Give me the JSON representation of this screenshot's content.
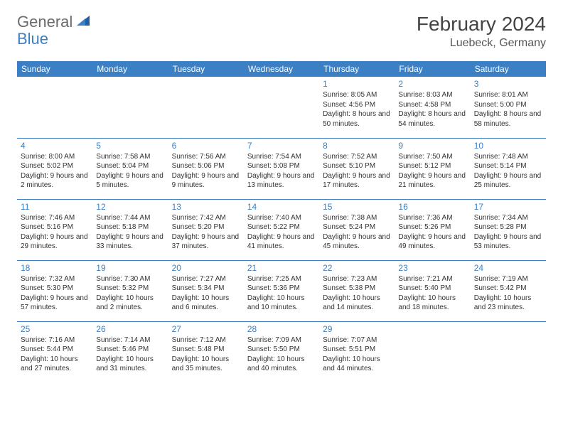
{
  "logo": {
    "general": "General",
    "blue": "Blue"
  },
  "header": {
    "title": "February 2024",
    "location": "Luebeck, Germany"
  },
  "colors": {
    "header_bg": "#3b7fc4",
    "header_text": "#ffffff",
    "day_number": "#3b7fc4",
    "body_text": "#333333",
    "title_text": "#444444"
  },
  "weekdays": [
    "Sunday",
    "Monday",
    "Tuesday",
    "Wednesday",
    "Thursday",
    "Friday",
    "Saturday"
  ],
  "weeks": [
    [
      null,
      null,
      null,
      null,
      {
        "n": "1",
        "sunrise": "Sunrise: 8:05 AM",
        "sunset": "Sunset: 4:56 PM",
        "daylight": "Daylight: 8 hours and 50 minutes."
      },
      {
        "n": "2",
        "sunrise": "Sunrise: 8:03 AM",
        "sunset": "Sunset: 4:58 PM",
        "daylight": "Daylight: 8 hours and 54 minutes."
      },
      {
        "n": "3",
        "sunrise": "Sunrise: 8:01 AM",
        "sunset": "Sunset: 5:00 PM",
        "daylight": "Daylight: 8 hours and 58 minutes."
      }
    ],
    [
      {
        "n": "4",
        "sunrise": "Sunrise: 8:00 AM",
        "sunset": "Sunset: 5:02 PM",
        "daylight": "Daylight: 9 hours and 2 minutes."
      },
      {
        "n": "5",
        "sunrise": "Sunrise: 7:58 AM",
        "sunset": "Sunset: 5:04 PM",
        "daylight": "Daylight: 9 hours and 5 minutes."
      },
      {
        "n": "6",
        "sunrise": "Sunrise: 7:56 AM",
        "sunset": "Sunset: 5:06 PM",
        "daylight": "Daylight: 9 hours and 9 minutes."
      },
      {
        "n": "7",
        "sunrise": "Sunrise: 7:54 AM",
        "sunset": "Sunset: 5:08 PM",
        "daylight": "Daylight: 9 hours and 13 minutes."
      },
      {
        "n": "8",
        "sunrise": "Sunrise: 7:52 AM",
        "sunset": "Sunset: 5:10 PM",
        "daylight": "Daylight: 9 hours and 17 minutes."
      },
      {
        "n": "9",
        "sunrise": "Sunrise: 7:50 AM",
        "sunset": "Sunset: 5:12 PM",
        "daylight": "Daylight: 9 hours and 21 minutes."
      },
      {
        "n": "10",
        "sunrise": "Sunrise: 7:48 AM",
        "sunset": "Sunset: 5:14 PM",
        "daylight": "Daylight: 9 hours and 25 minutes."
      }
    ],
    [
      {
        "n": "11",
        "sunrise": "Sunrise: 7:46 AM",
        "sunset": "Sunset: 5:16 PM",
        "daylight": "Daylight: 9 hours and 29 minutes."
      },
      {
        "n": "12",
        "sunrise": "Sunrise: 7:44 AM",
        "sunset": "Sunset: 5:18 PM",
        "daylight": "Daylight: 9 hours and 33 minutes."
      },
      {
        "n": "13",
        "sunrise": "Sunrise: 7:42 AM",
        "sunset": "Sunset: 5:20 PM",
        "daylight": "Daylight: 9 hours and 37 minutes."
      },
      {
        "n": "14",
        "sunrise": "Sunrise: 7:40 AM",
        "sunset": "Sunset: 5:22 PM",
        "daylight": "Daylight: 9 hours and 41 minutes."
      },
      {
        "n": "15",
        "sunrise": "Sunrise: 7:38 AM",
        "sunset": "Sunset: 5:24 PM",
        "daylight": "Daylight: 9 hours and 45 minutes."
      },
      {
        "n": "16",
        "sunrise": "Sunrise: 7:36 AM",
        "sunset": "Sunset: 5:26 PM",
        "daylight": "Daylight: 9 hours and 49 minutes."
      },
      {
        "n": "17",
        "sunrise": "Sunrise: 7:34 AM",
        "sunset": "Sunset: 5:28 PM",
        "daylight": "Daylight: 9 hours and 53 minutes."
      }
    ],
    [
      {
        "n": "18",
        "sunrise": "Sunrise: 7:32 AM",
        "sunset": "Sunset: 5:30 PM",
        "daylight": "Daylight: 9 hours and 57 minutes."
      },
      {
        "n": "19",
        "sunrise": "Sunrise: 7:30 AM",
        "sunset": "Sunset: 5:32 PM",
        "daylight": "Daylight: 10 hours and 2 minutes."
      },
      {
        "n": "20",
        "sunrise": "Sunrise: 7:27 AM",
        "sunset": "Sunset: 5:34 PM",
        "daylight": "Daylight: 10 hours and 6 minutes."
      },
      {
        "n": "21",
        "sunrise": "Sunrise: 7:25 AM",
        "sunset": "Sunset: 5:36 PM",
        "daylight": "Daylight: 10 hours and 10 minutes."
      },
      {
        "n": "22",
        "sunrise": "Sunrise: 7:23 AM",
        "sunset": "Sunset: 5:38 PM",
        "daylight": "Daylight: 10 hours and 14 minutes."
      },
      {
        "n": "23",
        "sunrise": "Sunrise: 7:21 AM",
        "sunset": "Sunset: 5:40 PM",
        "daylight": "Daylight: 10 hours and 18 minutes."
      },
      {
        "n": "24",
        "sunrise": "Sunrise: 7:19 AM",
        "sunset": "Sunset: 5:42 PM",
        "daylight": "Daylight: 10 hours and 23 minutes."
      }
    ],
    [
      {
        "n": "25",
        "sunrise": "Sunrise: 7:16 AM",
        "sunset": "Sunset: 5:44 PM",
        "daylight": "Daylight: 10 hours and 27 minutes."
      },
      {
        "n": "26",
        "sunrise": "Sunrise: 7:14 AM",
        "sunset": "Sunset: 5:46 PM",
        "daylight": "Daylight: 10 hours and 31 minutes."
      },
      {
        "n": "27",
        "sunrise": "Sunrise: 7:12 AM",
        "sunset": "Sunset: 5:48 PM",
        "daylight": "Daylight: 10 hours and 35 minutes."
      },
      {
        "n": "28",
        "sunrise": "Sunrise: 7:09 AM",
        "sunset": "Sunset: 5:50 PM",
        "daylight": "Daylight: 10 hours and 40 minutes."
      },
      {
        "n": "29",
        "sunrise": "Sunrise: 7:07 AM",
        "sunset": "Sunset: 5:51 PM",
        "daylight": "Daylight: 10 hours and 44 minutes."
      },
      null,
      null
    ]
  ]
}
